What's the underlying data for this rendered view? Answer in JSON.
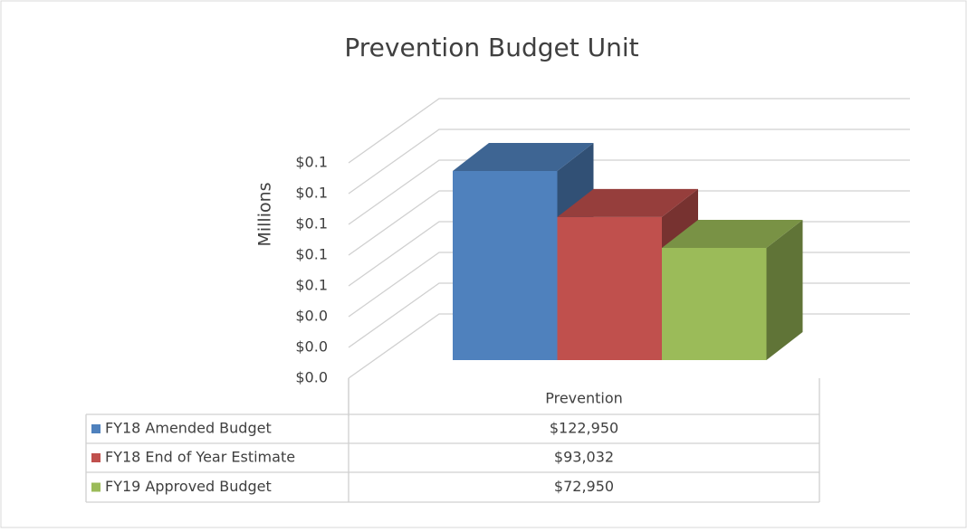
{
  "chart_data": {
    "type": "bar",
    "title": "Prevention Budget Unit",
    "y_label": "Millions",
    "categories": [
      "Prevention"
    ],
    "series": [
      {
        "name": "FY18 Amended Budget",
        "color": "#4f81bd",
        "values": [
          0.12295
        ],
        "value_labels": [
          "$122,950"
        ]
      },
      {
        "name": "FY18 End of Year Estimate",
        "color": "#c0504d",
        "values": [
          0.093032
        ],
        "value_labels": [
          "$93,032"
        ]
      },
      {
        "name": "FY19 Approved Budget",
        "color": "#9bbb59",
        "values": [
          0.07295
        ],
        "value_labels": [
          "$72,950"
        ]
      }
    ],
    "ylim": [
      0,
      0.14
    ],
    "yticks": [
      {
        "value": 0,
        "label": "$0.0"
      },
      {
        "value": 0.02,
        "label": "$0.0"
      },
      {
        "value": 0.04,
        "label": "$0.0"
      },
      {
        "value": 0.06,
        "label": "$0.1"
      },
      {
        "value": 0.08,
        "label": "$0.1"
      },
      {
        "value": 0.1,
        "label": "$0.1"
      },
      {
        "value": 0.12,
        "label": "$0.1"
      },
      {
        "value": 0.14,
        "label": "$0.1"
      }
    ],
    "grid": true
  }
}
